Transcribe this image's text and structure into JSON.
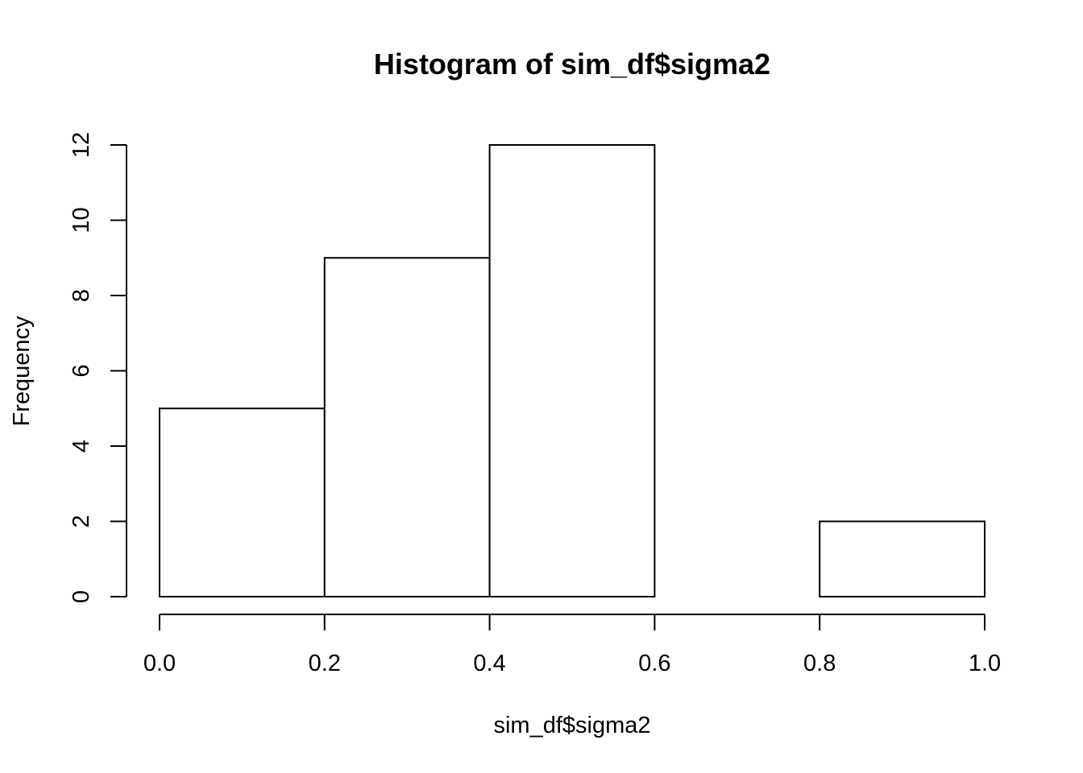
{
  "chart_data": {
    "type": "bar",
    "subtype": "histogram",
    "title": "Histogram of sim_df$sigma2",
    "xlabel": "sim_df$sigma2",
    "ylabel": "Frequency",
    "bins": [
      {
        "x0": 0.0,
        "x1": 0.2,
        "count": 5
      },
      {
        "x0": 0.2,
        "x1": 0.4,
        "count": 9
      },
      {
        "x0": 0.4,
        "x1": 0.6,
        "count": 12
      },
      {
        "x0": 0.6,
        "x1": 0.8,
        "count": 0
      },
      {
        "x0": 0.8,
        "x1": 1.0,
        "count": 2
      }
    ],
    "xlim": [
      0.0,
      1.0
    ],
    "ylim": [
      0,
      12
    ],
    "x_ticks": [
      "0.0",
      "0.2",
      "0.4",
      "0.6",
      "0.8",
      "1.0"
    ],
    "y_ticks": [
      "0",
      "2",
      "4",
      "6",
      "8",
      "10",
      "12"
    ],
    "grid": false
  }
}
